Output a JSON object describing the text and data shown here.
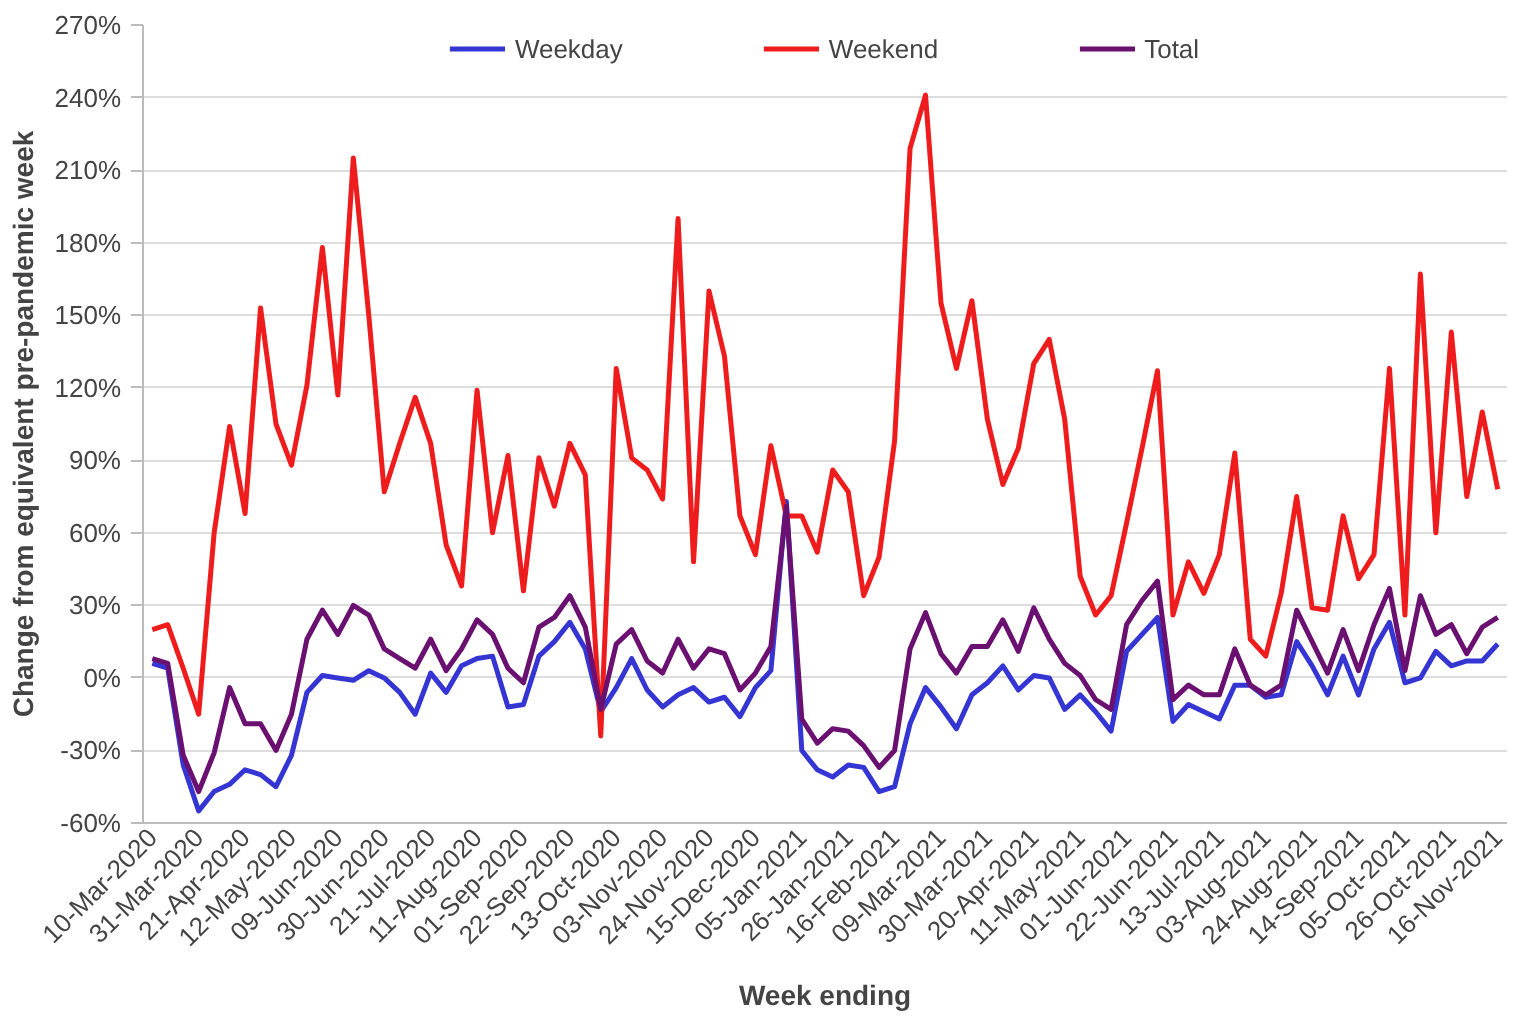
{
  "chart_data": {
    "type": "line",
    "xlabel": "Week ending",
    "ylabel": "Change from equivalent pre-pandemic week",
    "categories": [
      "10-Mar-2020",
      null,
      null,
      "31-Mar-2020",
      null,
      null,
      "21-Apr-2020",
      null,
      null,
      "12-May-2020",
      null,
      null,
      "09-Jun-2020",
      null,
      null,
      "30-Jun-2020",
      null,
      null,
      "21-Jul-2020",
      null,
      null,
      "11-Aug-2020",
      null,
      null,
      "01-Sep-2020",
      null,
      null,
      "22-Sep-2020",
      null,
      null,
      "13-Oct-2020",
      null,
      null,
      "03-Nov-2020",
      null,
      null,
      "24-Nov-2020",
      null,
      null,
      "15-Dec-2020",
      null,
      null,
      "05-Jan-2021",
      null,
      null,
      "26-Jan-2021",
      null,
      null,
      "16-Feb-2021",
      null,
      null,
      "09-Mar-2021",
      null,
      null,
      "30-Mar-2021",
      null,
      null,
      "20-Apr-2021",
      null,
      null,
      "11-May-2021",
      null,
      null,
      "01-Jun-2021",
      null,
      null,
      "22-Jun-2021",
      null,
      null,
      "13-Jul-2021",
      null,
      null,
      "03-Aug-2021",
      null,
      null,
      "24-Aug-2021",
      null,
      null,
      "14-Sep-2021",
      null,
      null,
      "05-Oct-2021",
      null,
      null,
      "26-Oct-2021",
      null,
      null,
      "16-Nov-2021"
    ],
    "series": [
      {
        "name": "Weekday",
        "color": "#3535d4",
        "values": [
          6,
          4,
          -36,
          -55,
          -47,
          -44,
          -38,
          -40,
          -45,
          -32,
          -6,
          1,
          0,
          -1,
          3,
          0,
          -6,
          -15,
          2,
          -6,
          5,
          8,
          9,
          -12,
          -11,
          9,
          15,
          23,
          12,
          -14,
          -4,
          8,
          -5,
          -12,
          -7,
          -4,
          -10,
          -8,
          -16,
          -4,
          3,
          73,
          -30,
          -38,
          -41,
          -36,
          -37,
          -47,
          -45,
          -19,
          -4,
          -12,
          -21,
          -7,
          -2,
          5,
          -5,
          1,
          0,
          -13,
          -7,
          -14,
          -22,
          11,
          18,
          25,
          -18,
          -11,
          -14,
          -17,
          -3,
          -3,
          -8,
          -7,
          15,
          5,
          -7,
          9,
          -7,
          12,
          23,
          -2,
          0,
          11,
          5,
          7,
          7,
          14
        ]
      },
      {
        "name": "Weekend",
        "color": "#ee1c1c",
        "values": [
          20,
          22,
          4,
          -15,
          60,
          104,
          68,
          153,
          105,
          88,
          121,
          178,
          117,
          215,
          150,
          77,
          97,
          116,
          97,
          55,
          38,
          119,
          60,
          92,
          36,
          91,
          71,
          97,
          84,
          -24,
          128,
          91,
          86,
          74,
          190,
          48,
          160,
          133,
          67,
          51,
          96,
          67,
          67,
          52,
          86,
          77,
          34,
          50,
          98,
          219,
          241,
          155,
          128,
          156,
          107,
          80,
          95,
          130,
          140,
          107,
          42,
          26,
          34,
          64,
          95,
          127,
          26,
          48,
          35,
          51,
          93,
          16,
          9,
          35,
          75,
          29,
          28,
          67,
          41,
          51,
          128,
          26,
          167,
          60,
          143,
          75,
          110,
          78
        ]
      },
      {
        "name": "Total",
        "color": "#6a1070",
        "values": [
          8,
          6,
          -32,
          -47,
          -31,
          -4,
          -19,
          -19,
          -30,
          -15,
          16,
          28,
          18,
          30,
          26,
          12,
          8,
          4,
          16,
          3,
          12,
          24,
          18,
          4,
          -2,
          21,
          25,
          34,
          21,
          -13,
          14,
          20,
          7,
          2,
          16,
          4,
          12,
          10,
          -5,
          2,
          13,
          71,
          -17,
          -27,
          -21,
          -22,
          -28,
          -37,
          -30,
          12,
          27,
          10,
          2,
          13,
          13,
          24,
          11,
          29,
          16,
          6,
          1,
          -9,
          -13,
          22,
          32,
          40,
          -9,
          -3,
          -7,
          -7,
          12,
          -3,
          -7,
          -3,
          28,
          15,
          2,
          20,
          3,
          22,
          37,
          3,
          34,
          18,
          22,
          10,
          21,
          25
        ]
      }
    ],
    "ylim": [
      -60,
      270
    ],
    "yticks": [
      {
        "value": -60,
        "label": "-60%"
      },
      {
        "value": -30,
        "label": "-30%"
      },
      {
        "value": 0,
        "label": "0%"
      },
      {
        "value": 30,
        "label": "30%"
      },
      {
        "value": 60,
        "label": "60%"
      },
      {
        "value": 90,
        "label": "90%"
      },
      {
        "value": 120,
        "label": "120%"
      },
      {
        "value": 150,
        "label": "150%"
      },
      {
        "value": 180,
        "label": "180%"
      },
      {
        "value": 210,
        "label": "210%"
      },
      {
        "value": 240,
        "label": "240%"
      },
      {
        "value": 270,
        "label": "270%"
      }
    ],
    "grid": "y",
    "legend": "top",
    "marker": "none",
    "line_style": "solid"
  }
}
